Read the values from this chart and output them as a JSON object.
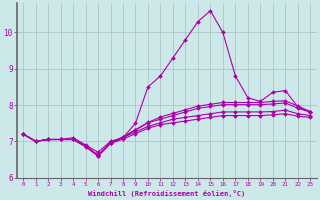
{
  "xlabel": "Windchill (Refroidissement éolien,°C)",
  "bg_color": "#cce8e8",
  "grid_color": "#aabcbc",
  "line_color": "#aa00aa",
  "spine_color": "#666666",
  "xlim": [
    -0.5,
    23.5
  ],
  "ylim": [
    6.0,
    10.8
  ],
  "yticks": [
    6,
    7,
    8,
    9,
    10
  ],
  "xticks": [
    0,
    1,
    2,
    3,
    4,
    5,
    6,
    7,
    8,
    9,
    10,
    11,
    12,
    13,
    14,
    15,
    16,
    17,
    18,
    19,
    20,
    21,
    22,
    23
  ],
  "series": [
    [
      7.2,
      7.0,
      7.05,
      7.05,
      7.1,
      6.9,
      6.7,
      7.0,
      7.1,
      7.5,
      8.5,
      8.8,
      9.3,
      9.8,
      10.3,
      10.6,
      10.0,
      8.8,
      8.2,
      8.1,
      8.35,
      8.4,
      7.95,
      7.8
    ],
    [
      7.2,
      7.0,
      7.05,
      7.05,
      7.05,
      6.88,
      6.62,
      6.97,
      7.12,
      7.32,
      7.52,
      7.67,
      7.77,
      7.87,
      7.97,
      8.02,
      8.07,
      8.07,
      8.07,
      8.07,
      8.1,
      8.12,
      7.97,
      7.82
    ],
    [
      7.2,
      7.0,
      7.05,
      7.05,
      7.05,
      6.87,
      6.61,
      6.96,
      7.11,
      7.31,
      7.51,
      7.61,
      7.71,
      7.81,
      7.91,
      7.96,
      8.01,
      8.01,
      8.01,
      8.01,
      8.03,
      8.06,
      7.91,
      7.81
    ],
    [
      7.2,
      7.0,
      7.05,
      7.05,
      7.05,
      6.86,
      6.6,
      6.95,
      7.1,
      7.26,
      7.41,
      7.51,
      7.61,
      7.66,
      7.71,
      7.76,
      7.81,
      7.81,
      7.81,
      7.81,
      7.82,
      7.86,
      7.76,
      7.71
    ],
    [
      7.2,
      7.0,
      7.05,
      7.05,
      7.05,
      6.85,
      6.59,
      6.94,
      7.06,
      7.21,
      7.36,
      7.46,
      7.51,
      7.56,
      7.61,
      7.66,
      7.71,
      7.71,
      7.71,
      7.71,
      7.73,
      7.76,
      7.69,
      7.66
    ]
  ]
}
